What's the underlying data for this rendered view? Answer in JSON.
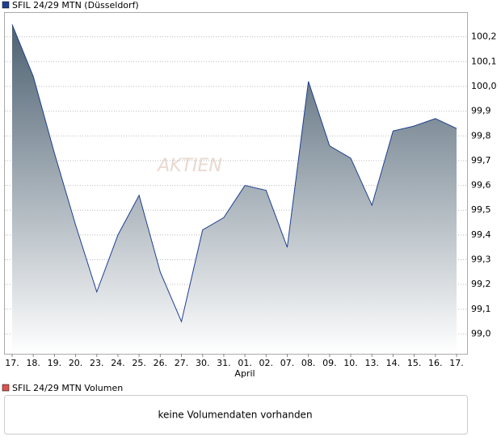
{
  "legend_top": "SFIL 24/29 MTN (Düsseldorf)",
  "watermark": "AKTIEN",
  "chart_data": {
    "type": "area",
    "categories": [
      "17.",
      "18.",
      "19.",
      "20.",
      "23.",
      "24.",
      "25.",
      "26.",
      "27.",
      "30.",
      "31.",
      "01.",
      "02.",
      "07.",
      "08.",
      "09.",
      "10.",
      "13.",
      "14.",
      "15.",
      "16.",
      "17."
    ],
    "annotation": "April",
    "series": [
      {
        "name": "SFIL 24/29 MTN (Düsseldorf)",
        "color": "#1f3f8f",
        "values": [
          100.25,
          100.04,
          99.73,
          99.44,
          99.17,
          99.4,
          99.56,
          99.25,
          99.05,
          99.42,
          99.47,
          99.6,
          99.58,
          99.35,
          100.02,
          99.76,
          99.71,
          99.52,
          99.82,
          99.84,
          99.87,
          99.83
        ]
      }
    ],
    "ylim": [
      98.92,
      100.3
    ],
    "yticks": [
      {
        "value": 99.0,
        "label": "99,0"
      },
      {
        "value": 99.1,
        "label": "99,1"
      },
      {
        "value": 99.2,
        "label": "99,2"
      },
      {
        "value": 99.3,
        "label": "99,3"
      },
      {
        "value": 99.4,
        "label": "99,4"
      },
      {
        "value": 99.5,
        "label": "99,5"
      },
      {
        "value": 99.6,
        "label": "99,6"
      },
      {
        "value": 99.7,
        "label": "99,7"
      },
      {
        "value": 99.8,
        "label": "99,8"
      },
      {
        "value": 99.9,
        "label": "99,9"
      },
      {
        "value": 100.0,
        "label": "100,0"
      },
      {
        "value": 100.1,
        "label": "100,1"
      },
      {
        "value": 100.2,
        "label": "100,2"
      }
    ],
    "grid": true
  },
  "volume": {
    "legend": "SFIL 24/29 MTN Volumen",
    "message": "keine Volumendaten vorhanden"
  }
}
